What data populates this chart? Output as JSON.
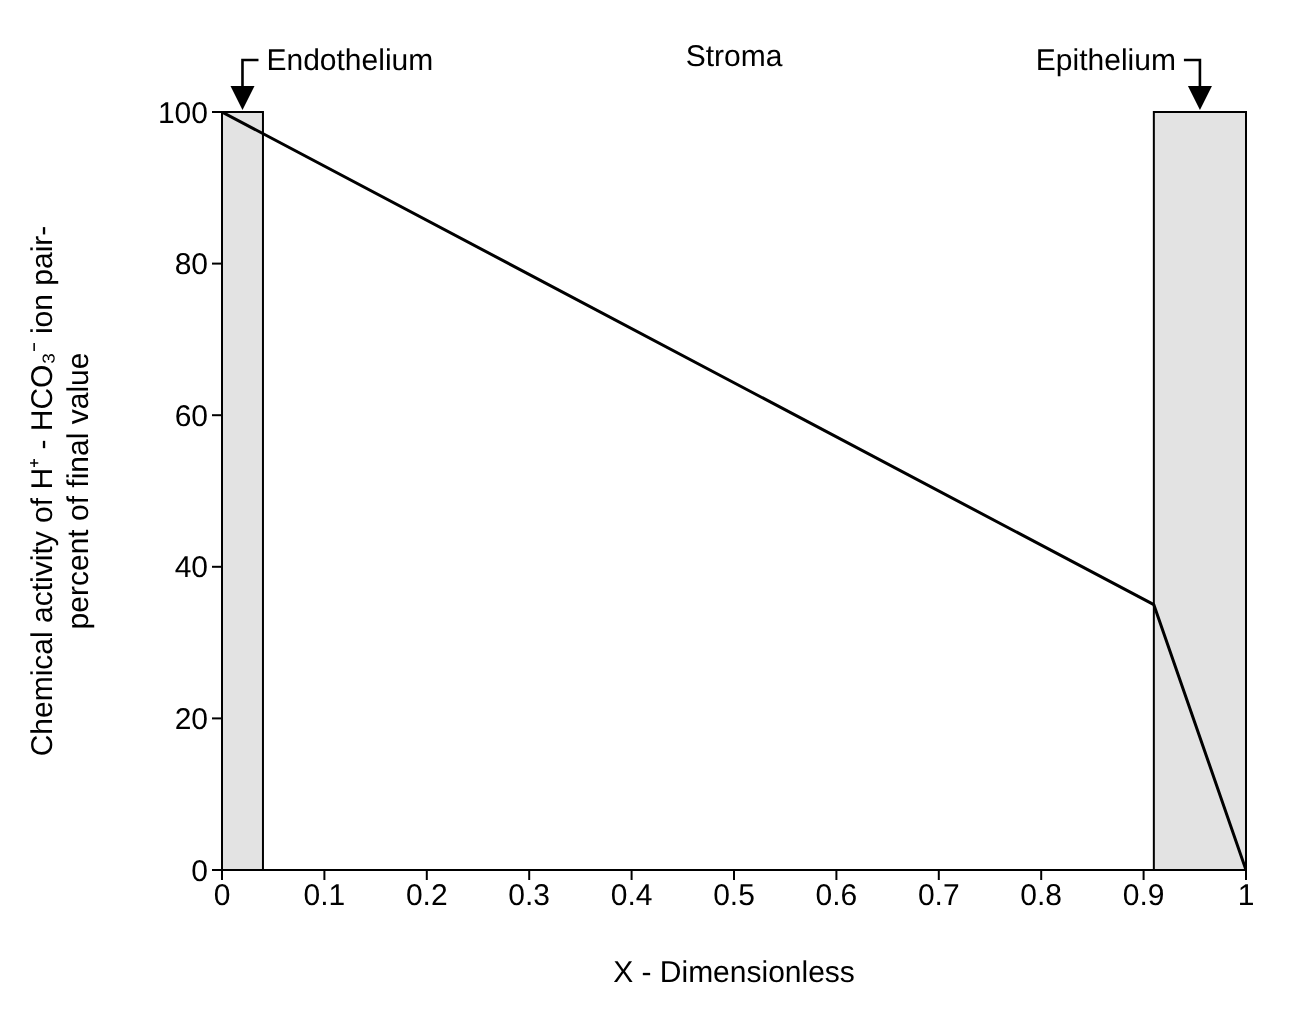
{
  "chart_data": {
    "type": "line",
    "xlabel": "X - Dimensionless",
    "ylabel": "Chemical activity of H⁺ - HCO₃⁻ ion pair-\npercent of final value",
    "x": [
      0,
      0.91,
      1
    ],
    "series": [
      {
        "color": "#000000",
        "values": [
          100,
          35,
          0
        ]
      }
    ],
    "xlim": [
      0,
      1
    ],
    "xticks": [
      0,
      0.1,
      0.2,
      0.3,
      0.4,
      0.5,
      0.6,
      0.7,
      0.8,
      0.9,
      1
    ],
    "ylim": [
      0,
      100
    ],
    "yticks": [
      0,
      20,
      40,
      60,
      80,
      100
    ],
    "bands": [
      {
        "axis": "x",
        "from": 0,
        "to": 0.04,
        "label": "Endothelium",
        "color": "#e3e3e3"
      },
      {
        "axis": "x",
        "from": 0.91,
        "to": 1,
        "label": "Epithelium",
        "color": "#e3e3e3"
      }
    ],
    "annotations": [
      "Stroma"
    ],
    "grid": false,
    "marker": "none",
    "line_style": "solid"
  }
}
